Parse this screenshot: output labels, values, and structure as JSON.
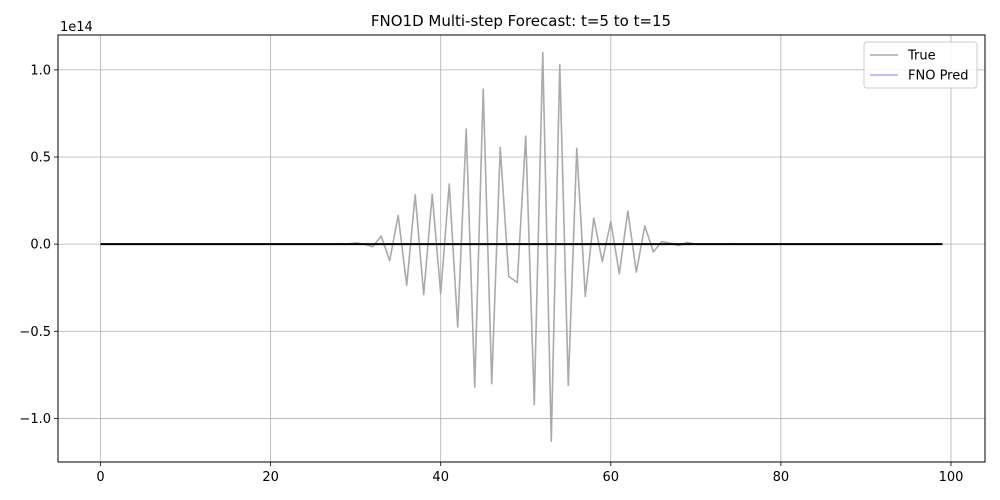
{
  "chart_data": {
    "type": "line",
    "title": "FNO1D Multi-step Forecast: t=5 to t=15",
    "xlabel": "",
    "ylabel": "",
    "y_scale_label": "1e14",
    "xlim": [
      -5,
      104
    ],
    "ylim": [
      -1.25,
      1.2
    ],
    "x_ticks": [
      0,
      20,
      40,
      60,
      80,
      100
    ],
    "x_tick_labels": [
      "0",
      "20",
      "40",
      "60",
      "80",
      "100"
    ],
    "y_ticks": [
      -1.0,
      -0.5,
      0.0,
      0.5,
      1.0
    ],
    "y_tick_labels": [
      "−1.0",
      "−0.5",
      "0.0",
      "0.5",
      "1.0"
    ],
    "grid": true,
    "legend_placement": "top-right",
    "series": [
      {
        "name": "True",
        "color": "#aaaaaa",
        "x": [
          0,
          1,
          2,
          3,
          4,
          5,
          6,
          7,
          8,
          9,
          10,
          11,
          12,
          13,
          14,
          15,
          16,
          17,
          18,
          19,
          20,
          21,
          22,
          23,
          24,
          25,
          26,
          27,
          28,
          29,
          30,
          31,
          32,
          33,
          34,
          35,
          36,
          37,
          38,
          39,
          40,
          41,
          42,
          43,
          44,
          45,
          46,
          47,
          48,
          49,
          50,
          51,
          52,
          53,
          54,
          55,
          56,
          57,
          58,
          59,
          60,
          61,
          62,
          63,
          64,
          65,
          66,
          67,
          68,
          69,
          70,
          71,
          72,
          73,
          74,
          75,
          76,
          77,
          78,
          79,
          80,
          81,
          82,
          83,
          84,
          85,
          86,
          87,
          88,
          89,
          90,
          91,
          92,
          93,
          94,
          95,
          96,
          97,
          98,
          99
        ],
        "y": [
          0,
          0,
          0,
          0,
          0,
          0,
          0,
          0,
          0,
          0,
          0,
          0,
          0,
          0,
          0,
          0,
          0,
          0,
          0,
          0,
          0,
          0,
          0,
          0,
          0,
          0,
          0,
          0,
          0.003,
          0,
          0.007,
          0,
          -0.015,
          0.046,
          -0.095,
          0.165,
          -0.235,
          0.283,
          -0.29,
          0.285,
          -0.285,
          0.345,
          -0.475,
          0.66,
          -0.82,
          0.89,
          -0.8,
          0.555,
          -0.185,
          -0.22,
          0.62,
          -0.92,
          1.1,
          -1.13,
          1.03,
          -0.81,
          0.55,
          -0.3,
          0.15,
          -0.1,
          0.13,
          -0.17,
          0.19,
          -0.16,
          0.105,
          -0.045,
          0.015,
          0.005,
          -0.008,
          0.01,
          0,
          0,
          0,
          0,
          0.003,
          0,
          0,
          0,
          0,
          0,
          0,
          0,
          0,
          0,
          0,
          0,
          0,
          0,
          0,
          0,
          0,
          0,
          0,
          0,
          0,
          0,
          0,
          0,
          0,
          0
        ]
      },
      {
        "name": "FNO Pred",
        "color": "#aaaaff",
        "x": [
          0,
          1,
          2,
          3,
          4,
          5,
          6,
          7,
          8,
          9,
          10,
          11,
          12,
          13,
          14,
          15,
          16,
          17,
          18,
          19,
          20,
          21,
          22,
          23,
          24,
          25,
          26,
          27,
          28,
          29,
          30,
          31,
          32,
          33,
          34,
          35,
          36,
          37,
          38,
          39,
          40,
          41,
          42,
          43,
          44,
          45,
          46,
          47,
          48,
          49,
          50,
          51,
          52,
          53,
          54,
          55,
          56,
          57,
          58,
          59,
          60,
          61,
          62,
          63,
          64,
          65,
          66,
          67,
          68,
          69,
          70,
          71,
          72,
          73,
          74,
          75,
          76,
          77,
          78,
          79,
          80,
          81,
          82,
          83,
          84,
          85,
          86,
          87,
          88,
          89,
          90,
          91,
          92,
          93,
          94,
          95,
          96,
          97,
          98,
          99
        ],
        "y": [
          0,
          0,
          0,
          0,
          0,
          0,
          0,
          0,
          0,
          0,
          0,
          0,
          0,
          0,
          0,
          0,
          0,
          0,
          0,
          0,
          0,
          0,
          0,
          0,
          0,
          0,
          0,
          0,
          0,
          0,
          0,
          0,
          0,
          0,
          0,
          0,
          0,
          0,
          0,
          0,
          0,
          0,
          0,
          0,
          0,
          0,
          0,
          0,
          0,
          0,
          0,
          0,
          0,
          0,
          0,
          0,
          0,
          0,
          0,
          0,
          0,
          0,
          0,
          0,
          0,
          0,
          0,
          0,
          0,
          0,
          0,
          0,
          0,
          0,
          0,
          0,
          0,
          0,
          0,
          0,
          0,
          0,
          0,
          0,
          0,
          0,
          0,
          0,
          0,
          0,
          0,
          0,
          0,
          0,
          0,
          0,
          0,
          0,
          0,
          0
        ]
      }
    ]
  }
}
